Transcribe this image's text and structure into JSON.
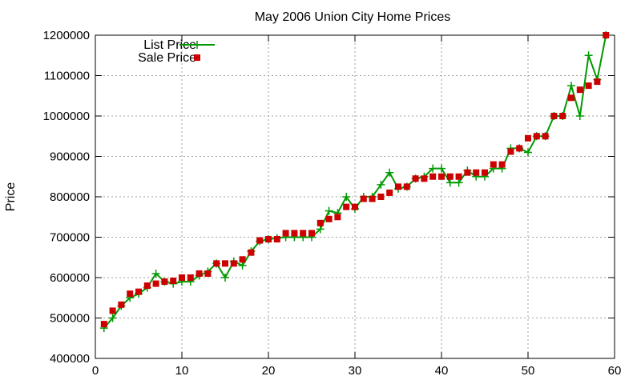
{
  "chart_data": {
    "type": "line",
    "title": "May 2006 Union City Home Prices",
    "xlabel": "",
    "ylabel": "Price",
    "xlim": [
      0,
      60
    ],
    "ylim": [
      400000,
      1200000
    ],
    "x_ticks": [
      0,
      10,
      20,
      30,
      40,
      50,
      60
    ],
    "y_ticks": [
      400000,
      500000,
      600000,
      700000,
      800000,
      900000,
      1000000,
      1100000,
      1200000
    ],
    "grid": true,
    "legend_position": "top-left",
    "series": [
      {
        "name": "List Price",
        "style": "line-plus",
        "color": "#009900",
        "x": [
          1,
          2,
          3,
          4,
          5,
          6,
          7,
          8,
          9,
          10,
          11,
          12,
          13,
          14,
          15,
          16,
          17,
          18,
          19,
          20,
          21,
          22,
          23,
          24,
          25,
          26,
          27,
          28,
          29,
          30,
          31,
          32,
          33,
          34,
          35,
          36,
          37,
          38,
          39,
          40,
          41,
          42,
          43,
          44,
          45,
          46,
          47,
          48,
          49,
          50,
          51,
          52,
          53,
          54,
          55,
          56,
          57,
          58,
          59
        ],
        "values": [
          475000,
          500000,
          530000,
          550000,
          560000,
          575000,
          610000,
          590000,
          585000,
          590000,
          590000,
          605000,
          615000,
          635000,
          600000,
          640000,
          630000,
          665000,
          690000,
          695000,
          698000,
          700000,
          700000,
          700000,
          700000,
          720000,
          765000,
          760000,
          800000,
          770000,
          800000,
          800000,
          830000,
          860000,
          820000,
          825000,
          845000,
          850000,
          870000,
          870000,
          835000,
          835000,
          865000,
          850000,
          850000,
          870000,
          870000,
          920000,
          920000,
          910000,
          950000,
          950000,
          1000000,
          1000000,
          1075000,
          1000000,
          1150000,
          1090000,
          1200000
        ]
      },
      {
        "name": "Sale Price",
        "style": "square",
        "color": "#cc0000",
        "x": [
          1,
          2,
          3,
          4,
          5,
          6,
          7,
          8,
          9,
          10,
          11,
          12,
          13,
          14,
          15,
          16,
          17,
          18,
          19,
          20,
          21,
          22,
          23,
          24,
          25,
          26,
          27,
          28,
          29,
          30,
          31,
          32,
          33,
          34,
          35,
          36,
          37,
          38,
          39,
          40,
          41,
          42,
          43,
          44,
          45,
          46,
          47,
          48,
          49,
          50,
          51,
          52,
          53,
          54,
          55,
          56,
          57,
          58,
          59
        ],
        "values": [
          485000,
          518000,
          533000,
          560000,
          565000,
          580000,
          585000,
          590000,
          592000,
          600000,
          600000,
          610000,
          610000,
          635000,
          635000,
          635000,
          645000,
          662000,
          692000,
          695000,
          695000,
          710000,
          710000,
          710000,
          710000,
          735000,
          745000,
          750000,
          775000,
          775000,
          795000,
          795000,
          800000,
          810000,
          825000,
          825000,
          845000,
          845000,
          850000,
          850000,
          850000,
          850000,
          860000,
          860000,
          860000,
          880000,
          880000,
          912000,
          920000,
          945000,
          950000,
          950000,
          1000000,
          1000000,
          1045000,
          1065000,
          1075000,
          1085000,
          1200000
        ]
      }
    ]
  }
}
